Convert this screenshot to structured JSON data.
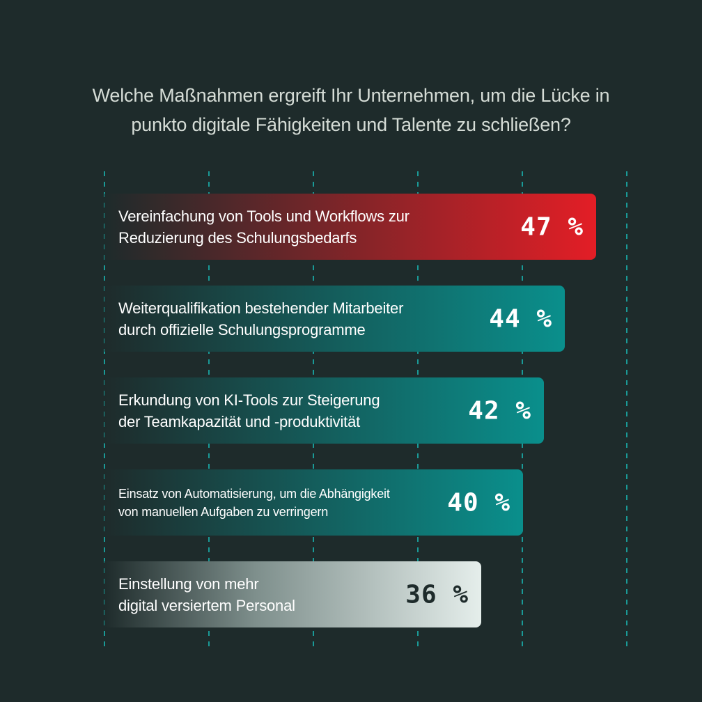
{
  "title": {
    "line1": "Welche Maßnahmen ergreift Ihr Unternehmen, um die Lücke in",
    "line2": "punkto digitale Fähigkeiten und Talente zu schließen?"
  },
  "colors": {
    "background": "#1e2b2b",
    "red": "#e31e26",
    "teal": "#0a8f8c",
    "light": "#e5eeeb",
    "gridline": "#1a9a97"
  },
  "chart_data": {
    "type": "bar",
    "orientation": "horizontal",
    "title": "Welche Maßnahmen ergreift Ihr Unternehmen, um die Lücke in punkto digitale Fähigkeiten und Talente zu schließen?",
    "categories": [
      "Vereinfachung von Tools und Workflows zur Reduzierung des Schulungsbedarfs",
      "Weiterqualifikation bestehender Mitarbeiter durch offizielle Schulungsprogramme",
      "Erkundung von KI-Tools zur Steigerung der Teamkapazität und -produktivität",
      "Einsatz von Automatisierung, um die Abhängigkeit von manuellen Aufgaben zu verringern",
      "Einstellung von mehr digital versiertem Personal"
    ],
    "values": [
      47,
      44,
      42,
      40,
      36
    ],
    "unit": "%",
    "grid": true,
    "bars": [
      {
        "label_lines": [
          "Vereinfachung von Tools und Workflows zur",
          "Reduzierung des Schulungsbedarfs"
        ],
        "value": 47,
        "display": "47 %",
        "color": "#e31e26"
      },
      {
        "label_lines": [
          "Weiterqualifikation bestehender Mitarbeiter",
          "durch offizielle Schulungsprogramme"
        ],
        "value": 44,
        "display": "44 %",
        "color": "#0a8f8c"
      },
      {
        "label_lines": [
          "Erkundung von KI-Tools zur Steigerung",
          "der Teamkapazität und -produktivität"
        ],
        "value": 42,
        "display": "42 %",
        "color": "#0a8f8c"
      },
      {
        "label_lines": [
          "Einsatz von Automatisierung, um die Abhängigkeit",
          "von manuellen Aufgaben zu verringern"
        ],
        "value": 40,
        "display": "40 %",
        "color": "#0a8f8c"
      },
      {
        "label_lines": [
          "Einstellung von mehr",
          "digital versiertem Personal"
        ],
        "value": 36,
        "display": "36 %",
        "color": "#e5eeeb"
      }
    ]
  }
}
